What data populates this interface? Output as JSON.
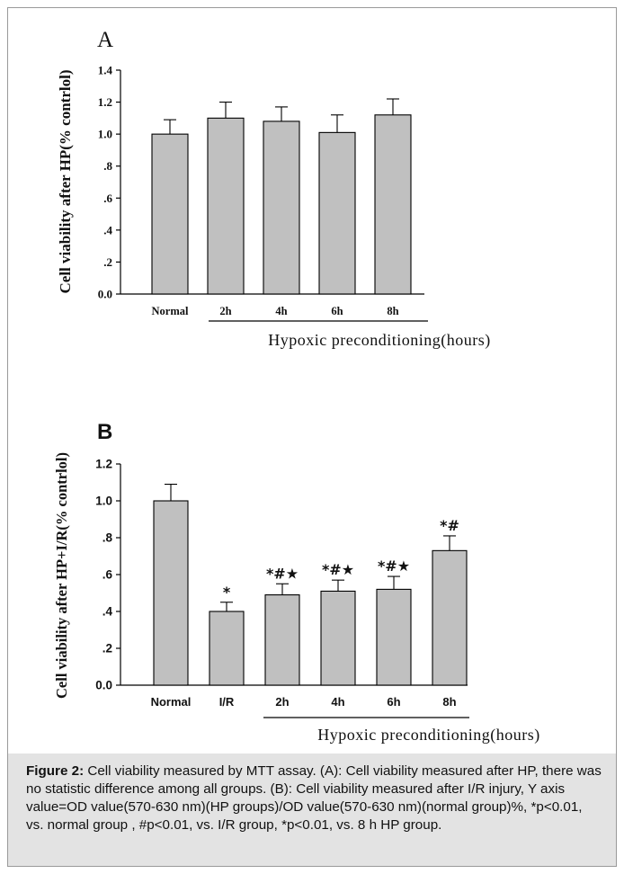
{
  "chart_data": [
    {
      "panel": "A",
      "type": "bar",
      "categories": [
        "Normal",
        "2h",
        "4h",
        "6h",
        "8h"
      ],
      "values": [
        1.0,
        1.1,
        1.08,
        1.01,
        1.12
      ],
      "errors": [
        0.09,
        0.1,
        0.09,
        0.11,
        0.1
      ],
      "annotations": [
        "",
        "",
        "",
        "",
        ""
      ],
      "ylabel": "Cell viability after HP(% contrlol)",
      "xlabel": "Hypoxic preconditioning(hours)",
      "ylim": [
        0,
        1.4
      ],
      "yticks": [
        "0.0",
        ".2",
        ".4",
        ".6",
        ".8",
        "1.0",
        "1.2",
        "1.4"
      ],
      "grid": false,
      "bar_color": "#c0c0c0"
    },
    {
      "panel": "B",
      "type": "bar",
      "categories": [
        "Normal",
        "I/R",
        "2h",
        "4h",
        "6h",
        "8h"
      ],
      "values": [
        1.0,
        0.4,
        0.49,
        0.51,
        0.52,
        0.73
      ],
      "errors": [
        0.09,
        0.05,
        0.06,
        0.06,
        0.07,
        0.08
      ],
      "annotations": [
        "",
        "*",
        "*#★",
        "*#★",
        "*#★",
        "*#"
      ],
      "ylabel": "Cell viability after HP+I/R(% contrlol)",
      "xlabel": "Hypoxic preconditioning(hours)",
      "ylim": [
        0,
        1.2
      ],
      "yticks": [
        "0.0",
        ".2",
        ".4",
        ".6",
        ".8",
        "1.0",
        "1.2"
      ],
      "grid": false,
      "bar_color": "#c0c0c0"
    }
  ],
  "caption": {
    "label": "Figure 2:",
    "text": "Cell viability measured by MTT assay. (A): Cell viability measured after HP, there was no statistic difference among all groups. (B): Cell viability measured after I/R injury, Y axis value=OD value(570-630 nm)(HP groups)/OD value(570-630 nm)(normal group)%, *p<0.01, vs. normal group , #p<0.01, vs. I/R group, *p<0.01, vs. 8 h HP group."
  }
}
